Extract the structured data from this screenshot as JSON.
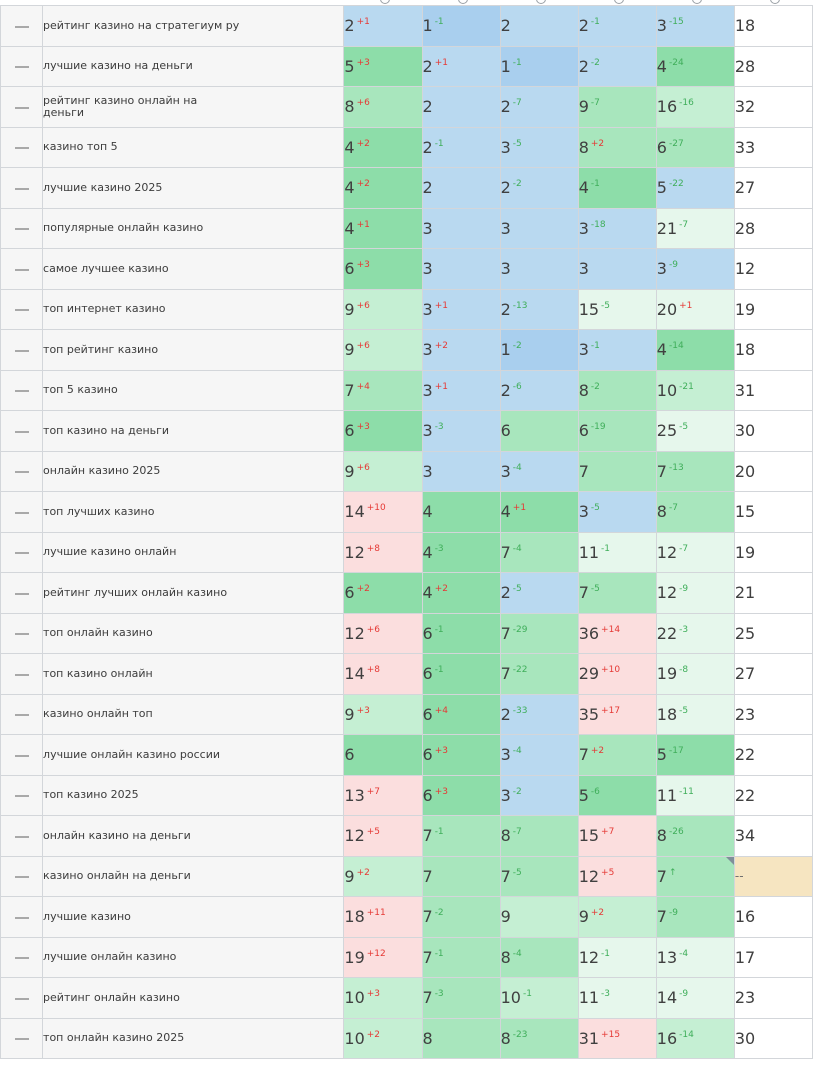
{
  "rows": [
    {
      "keyword": "рейтинг казино на стратегиум ру",
      "cells": [
        {
          "v": "2",
          "d": "+1",
          "dir": "down",
          "bg": "blue"
        },
        {
          "v": "1",
          "d": "-1",
          "dir": "up",
          "bg": "blue2"
        },
        {
          "v": "2",
          "d": "",
          "dir": "",
          "bg": "blue"
        },
        {
          "v": "2",
          "d": "-1",
          "dir": "up",
          "bg": "blue"
        },
        {
          "v": "3",
          "d": "-15",
          "dir": "up",
          "bg": "blue"
        }
      ],
      "last": "18"
    },
    {
      "keyword": "лучшие казино на деньги",
      "cells": [
        {
          "v": "5",
          "d": "+3",
          "dir": "down",
          "bg": "g1"
        },
        {
          "v": "2",
          "d": "+1",
          "dir": "down",
          "bg": "blue"
        },
        {
          "v": "1",
          "d": "-1",
          "dir": "up",
          "bg": "blue2"
        },
        {
          "v": "2",
          "d": "-2",
          "dir": "up",
          "bg": "blue"
        },
        {
          "v": "4",
          "d": "-24",
          "dir": "up",
          "bg": "g1"
        }
      ],
      "last": "28"
    },
    {
      "keyword": "рейтинг казино онлайн на деньги",
      "cells": [
        {
          "v": "8",
          "d": "+6",
          "dir": "down",
          "bg": "g2"
        },
        {
          "v": "2",
          "d": "",
          "dir": "",
          "bg": "blue"
        },
        {
          "v": "2",
          "d": "-7",
          "dir": "up",
          "bg": "blue"
        },
        {
          "v": "9",
          "d": "-7",
          "dir": "up",
          "bg": "g2"
        },
        {
          "v": "16",
          "d": "-16",
          "dir": "up",
          "bg": "g3"
        }
      ],
      "last": "32"
    },
    {
      "keyword": "казино топ 5",
      "cells": [
        {
          "v": "4",
          "d": "+2",
          "dir": "down",
          "bg": "g1"
        },
        {
          "v": "2",
          "d": "-1",
          "dir": "up",
          "bg": "blue"
        },
        {
          "v": "3",
          "d": "-5",
          "dir": "up",
          "bg": "blue"
        },
        {
          "v": "8",
          "d": "+2",
          "dir": "down",
          "bg": "g2"
        },
        {
          "v": "6",
          "d": "-27",
          "dir": "up",
          "bg": "g2"
        }
      ],
      "last": "33"
    },
    {
      "keyword": "лучшие казино 2025",
      "cells": [
        {
          "v": "4",
          "d": "+2",
          "dir": "down",
          "bg": "g1"
        },
        {
          "v": "2",
          "d": "",
          "dir": "",
          "bg": "blue"
        },
        {
          "v": "2",
          "d": "-2",
          "dir": "up",
          "bg": "blue"
        },
        {
          "v": "4",
          "d": "-1",
          "dir": "up",
          "bg": "g1"
        },
        {
          "v": "5",
          "d": "-22",
          "dir": "up",
          "bg": "blue"
        }
      ],
      "last": "27"
    },
    {
      "keyword": "популярные онлайн казино",
      "cells": [
        {
          "v": "4",
          "d": "+1",
          "dir": "down",
          "bg": "g1"
        },
        {
          "v": "3",
          "d": "",
          "dir": "",
          "bg": "blue"
        },
        {
          "v": "3",
          "d": "",
          "dir": "",
          "bg": "blue"
        },
        {
          "v": "3",
          "d": "-18",
          "dir": "up",
          "bg": "blue"
        },
        {
          "v": "21",
          "d": "-7",
          "dir": "up",
          "bg": "g4"
        }
      ],
      "last": "28"
    },
    {
      "keyword": "самое лучшее казино",
      "cells": [
        {
          "v": "6",
          "d": "+3",
          "dir": "down",
          "bg": "g1"
        },
        {
          "v": "3",
          "d": "",
          "dir": "",
          "bg": "blue"
        },
        {
          "v": "3",
          "d": "",
          "dir": "",
          "bg": "blue"
        },
        {
          "v": "3",
          "d": "",
          "dir": "",
          "bg": "blue"
        },
        {
          "v": "3",
          "d": "-9",
          "dir": "up",
          "bg": "blue"
        }
      ],
      "last": "12"
    },
    {
      "keyword": "топ интернет казино",
      "cells": [
        {
          "v": "9",
          "d": "+6",
          "dir": "down",
          "bg": "g3"
        },
        {
          "v": "3",
          "d": "+1",
          "dir": "down",
          "bg": "blue"
        },
        {
          "v": "2",
          "d": "-13",
          "dir": "up",
          "bg": "blue"
        },
        {
          "v": "15",
          "d": "-5",
          "dir": "up",
          "bg": "g4"
        },
        {
          "v": "20",
          "d": "+1",
          "dir": "down",
          "bg": "g4"
        }
      ],
      "last": "19"
    },
    {
      "keyword": "топ рейтинг казино",
      "cells": [
        {
          "v": "9",
          "d": "+6",
          "dir": "down",
          "bg": "g3"
        },
        {
          "v": "3",
          "d": "+2",
          "dir": "down",
          "bg": "blue"
        },
        {
          "v": "1",
          "d": "-2",
          "dir": "up",
          "bg": "blue2"
        },
        {
          "v": "3",
          "d": "-1",
          "dir": "up",
          "bg": "blue"
        },
        {
          "v": "4",
          "d": "-14",
          "dir": "up",
          "bg": "g1"
        }
      ],
      "last": "18"
    },
    {
      "keyword": "топ 5 казино",
      "cells": [
        {
          "v": "7",
          "d": "+4",
          "dir": "down",
          "bg": "g2"
        },
        {
          "v": "3",
          "d": "+1",
          "dir": "down",
          "bg": "blue"
        },
        {
          "v": "2",
          "d": "-6",
          "dir": "up",
          "bg": "blue"
        },
        {
          "v": "8",
          "d": "-2",
          "dir": "up",
          "bg": "g2"
        },
        {
          "v": "10",
          "d": "-21",
          "dir": "up",
          "bg": "g3"
        }
      ],
      "last": "31"
    },
    {
      "keyword": "топ казино на деньги",
      "cells": [
        {
          "v": "6",
          "d": "+3",
          "dir": "down",
          "bg": "g1"
        },
        {
          "v": "3",
          "d": "-3",
          "dir": "up",
          "bg": "blue"
        },
        {
          "v": "6",
          "d": "",
          "dir": "",
          "bg": "g2"
        },
        {
          "v": "6",
          "d": "-19",
          "dir": "up",
          "bg": "g2"
        },
        {
          "v": "25",
          "d": "-5",
          "dir": "up",
          "bg": "g4"
        }
      ],
      "last": "30"
    },
    {
      "keyword": "онлайн казино 2025",
      "cells": [
        {
          "v": "9",
          "d": "+6",
          "dir": "down",
          "bg": "g3"
        },
        {
          "v": "3",
          "d": "",
          "dir": "",
          "bg": "blue"
        },
        {
          "v": "3",
          "d": "-4",
          "dir": "up",
          "bg": "blue"
        },
        {
          "v": "7",
          "d": "",
          "dir": "",
          "bg": "g2"
        },
        {
          "v": "7",
          "d": "-13",
          "dir": "up",
          "bg": "g2"
        }
      ],
      "last": "20"
    },
    {
      "keyword": "топ лучших казино",
      "cells": [
        {
          "v": "14",
          "d": "+10",
          "dir": "down",
          "bg": "pink"
        },
        {
          "v": "4",
          "d": "",
          "dir": "",
          "bg": "g1"
        },
        {
          "v": "4",
          "d": "+1",
          "dir": "down",
          "bg": "g1"
        },
        {
          "v": "3",
          "d": "-5",
          "dir": "up",
          "bg": "blue"
        },
        {
          "v": "8",
          "d": "-7",
          "dir": "up",
          "bg": "g2"
        }
      ],
      "last": "15"
    },
    {
      "keyword": "лучшие казино онлайн",
      "cells": [
        {
          "v": "12",
          "d": "+8",
          "dir": "down",
          "bg": "pink"
        },
        {
          "v": "4",
          "d": "-3",
          "dir": "up",
          "bg": "g1"
        },
        {
          "v": "7",
          "d": "-4",
          "dir": "up",
          "bg": "g2"
        },
        {
          "v": "11",
          "d": "-1",
          "dir": "up",
          "bg": "g4"
        },
        {
          "v": "12",
          "d": "-7",
          "dir": "up",
          "bg": "g4"
        }
      ],
      "last": "19"
    },
    {
      "keyword": "рейтинг лучших онлайн казино",
      "cells": [
        {
          "v": "6",
          "d": "+2",
          "dir": "down",
          "bg": "g1"
        },
        {
          "v": "4",
          "d": "+2",
          "dir": "down",
          "bg": "g1"
        },
        {
          "v": "2",
          "d": "-5",
          "dir": "up",
          "bg": "blue"
        },
        {
          "v": "7",
          "d": "-5",
          "dir": "up",
          "bg": "g2"
        },
        {
          "v": "12",
          "d": "-9",
          "dir": "up",
          "bg": "g4"
        }
      ],
      "last": "21"
    },
    {
      "keyword": "топ онлайн казино",
      "cells": [
        {
          "v": "12",
          "d": "+6",
          "dir": "down",
          "bg": "pink"
        },
        {
          "v": "6",
          "d": "-1",
          "dir": "up",
          "bg": "g1"
        },
        {
          "v": "7",
          "d": "-29",
          "dir": "up",
          "bg": "g2"
        },
        {
          "v": "36",
          "d": "+14",
          "dir": "down",
          "bg": "pink"
        },
        {
          "v": "22",
          "d": "-3",
          "dir": "up",
          "bg": "g4"
        }
      ],
      "last": "25"
    },
    {
      "keyword": "топ казино онлайн",
      "cells": [
        {
          "v": "14",
          "d": "+8",
          "dir": "down",
          "bg": "pink"
        },
        {
          "v": "6",
          "d": "-1",
          "dir": "up",
          "bg": "g1"
        },
        {
          "v": "7",
          "d": "-22",
          "dir": "up",
          "bg": "g2"
        },
        {
          "v": "29",
          "d": "+10",
          "dir": "down",
          "bg": "pink"
        },
        {
          "v": "19",
          "d": "-8",
          "dir": "up",
          "bg": "g4"
        }
      ],
      "last": "27"
    },
    {
      "keyword": "казино онлайн топ",
      "cells": [
        {
          "v": "9",
          "d": "+3",
          "dir": "down",
          "bg": "g3"
        },
        {
          "v": "6",
          "d": "+4",
          "dir": "down",
          "bg": "g1"
        },
        {
          "v": "2",
          "d": "-33",
          "dir": "up",
          "bg": "blue"
        },
        {
          "v": "35",
          "d": "+17",
          "dir": "down",
          "bg": "pink"
        },
        {
          "v": "18",
          "d": "-5",
          "dir": "up",
          "bg": "g4"
        }
      ],
      "last": "23"
    },
    {
      "keyword": "лучшие онлайн казино россии",
      "cells": [
        {
          "v": "6",
          "d": "",
          "dir": "",
          "bg": "g1"
        },
        {
          "v": "6",
          "d": "+3",
          "dir": "down",
          "bg": "g1"
        },
        {
          "v": "3",
          "d": "-4",
          "dir": "up",
          "bg": "blue"
        },
        {
          "v": "7",
          "d": "+2",
          "dir": "down",
          "bg": "g2"
        },
        {
          "v": "5",
          "d": "-17",
          "dir": "up",
          "bg": "g1"
        }
      ],
      "last": "22"
    },
    {
      "keyword": "топ казино 2025",
      "cells": [
        {
          "v": "13",
          "d": "+7",
          "dir": "down",
          "bg": "pink"
        },
        {
          "v": "6",
          "d": "+3",
          "dir": "down",
          "bg": "g1"
        },
        {
          "v": "3",
          "d": "-2",
          "dir": "up",
          "bg": "blue"
        },
        {
          "v": "5",
          "d": "-6",
          "dir": "up",
          "bg": "g1"
        },
        {
          "v": "11",
          "d": "-11",
          "dir": "up",
          "bg": "g4"
        }
      ],
      "last": "22"
    },
    {
      "keyword": "онлайн казино на деньги",
      "cells": [
        {
          "v": "12",
          "d": "+5",
          "dir": "down",
          "bg": "pink"
        },
        {
          "v": "7",
          "d": "-1",
          "dir": "up",
          "bg": "g2"
        },
        {
          "v": "8",
          "d": "-7",
          "dir": "up",
          "bg": "g2"
        },
        {
          "v": "15",
          "d": "+7",
          "dir": "down",
          "bg": "pink"
        },
        {
          "v": "8",
          "d": "-26",
          "dir": "up",
          "bg": "g2"
        }
      ],
      "last": "34"
    },
    {
      "keyword": "казино онлайн на деньги",
      "cells": [
        {
          "v": "9",
          "d": "+2",
          "dir": "down",
          "bg": "g3"
        },
        {
          "v": "7",
          "d": "",
          "dir": "",
          "bg": "g2"
        },
        {
          "v": "7",
          "d": "-5",
          "dir": "up",
          "bg": "g2"
        },
        {
          "v": "12",
          "d": "+5",
          "dir": "down",
          "bg": "pink"
        },
        {
          "v": "7",
          "d": "↑",
          "dir": "up",
          "bg": "g2",
          "corner": true
        }
      ],
      "last": "--",
      "last_empty": true
    },
    {
      "keyword": "лучшие казино",
      "cells": [
        {
          "v": "18",
          "d": "+11",
          "dir": "down",
          "bg": "pink"
        },
        {
          "v": "7",
          "d": "-2",
          "dir": "up",
          "bg": "g2"
        },
        {
          "v": "9",
          "d": "",
          "dir": "",
          "bg": "g3"
        },
        {
          "v": "9",
          "d": "+2",
          "dir": "down",
          "bg": "g3"
        },
        {
          "v": "7",
          "d": "-9",
          "dir": "up",
          "bg": "g2"
        }
      ],
      "last": "16"
    },
    {
      "keyword": "лучшие онлайн казино",
      "cells": [
        {
          "v": "19",
          "d": "+12",
          "dir": "down",
          "bg": "pink"
        },
        {
          "v": "7",
          "d": "-1",
          "dir": "up",
          "bg": "g2"
        },
        {
          "v": "8",
          "d": "-4",
          "dir": "up",
          "bg": "g2"
        },
        {
          "v": "12",
          "d": "-1",
          "dir": "up",
          "bg": "g4"
        },
        {
          "v": "13",
          "d": "-4",
          "dir": "up",
          "bg": "g4"
        }
      ],
      "last": "17"
    },
    {
      "keyword": "рейтинг онлайн казино",
      "cells": [
        {
          "v": "10",
          "d": "+3",
          "dir": "down",
          "bg": "g3"
        },
        {
          "v": "7",
          "d": "-3",
          "dir": "up",
          "bg": "g2"
        },
        {
          "v": "10",
          "d": "-1",
          "dir": "up",
          "bg": "g3"
        },
        {
          "v": "11",
          "d": "-3",
          "dir": "up",
          "bg": "g4"
        },
        {
          "v": "14",
          "d": "-9",
          "dir": "up",
          "bg": "g4"
        }
      ],
      "last": "23"
    },
    {
      "keyword": "топ онлайн казино 2025",
      "cells": [
        {
          "v": "10",
          "d": "+2",
          "dir": "down",
          "bg": "g3"
        },
        {
          "v": "8",
          "d": "",
          "dir": "",
          "bg": "g2"
        },
        {
          "v": "8",
          "d": "-23",
          "dir": "up",
          "bg": "g2"
        },
        {
          "v": "31",
          "d": "+15",
          "dir": "down",
          "bg": "pink"
        },
        {
          "v": "16",
          "d": "-14",
          "dir": "up",
          "bg": "g3"
        }
      ],
      "last": "30"
    }
  ]
}
